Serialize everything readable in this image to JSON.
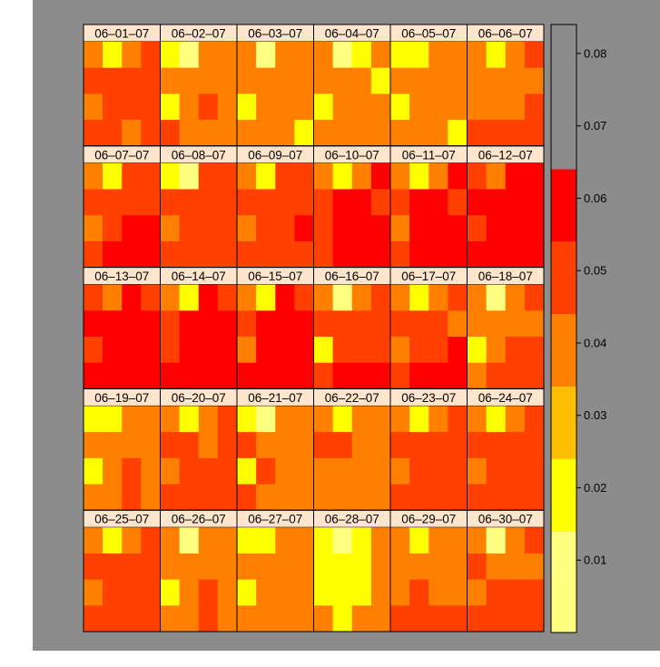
{
  "chart_data": {
    "type": "heatmap",
    "layout": {
      "rows": 5,
      "cols": 6
    },
    "grid_size": [
      4,
      4
    ],
    "colorbar": {
      "ticks": [
        "0.01",
        "0.02",
        "0.03",
        "0.04",
        "0.05",
        "0.06",
        "0.07",
        "0.08"
      ],
      "range": [
        0.0,
        0.084
      ],
      "breaks": [
        0.0,
        0.014,
        0.024,
        0.034,
        0.044,
        0.054,
        0.064,
        0.074,
        0.084
      ],
      "colors": [
        "#ffff80",
        "#ffff00",
        "#ffbf00",
        "#ff8000",
        "#ff4000",
        "#ff0000"
      ]
    },
    "panels": [
      {
        "label": "06–01–07",
        "values": [
          [
            0.038,
            0.02,
            0.038,
            0.048
          ],
          [
            0.048,
            0.048,
            0.048,
            0.048
          ],
          [
            0.038,
            0.048,
            0.048,
            0.048
          ],
          [
            0.048,
            0.048,
            0.038,
            0.048
          ]
        ]
      },
      {
        "label": "06–02–07",
        "values": [
          [
            0.02,
            0.01,
            0.038,
            0.038
          ],
          [
            0.038,
            0.038,
            0.038,
            0.038
          ],
          [
            0.02,
            0.038,
            0.048,
            0.038
          ],
          [
            0.048,
            0.038,
            0.038,
            0.038
          ]
        ]
      },
      {
        "label": "06–03–07",
        "values": [
          [
            0.038,
            0.01,
            0.038,
            0.038
          ],
          [
            0.038,
            0.038,
            0.038,
            0.038
          ],
          [
            0.02,
            0.038,
            0.038,
            0.038
          ],
          [
            0.038,
            0.038,
            0.038,
            0.02
          ]
        ]
      },
      {
        "label": "06–04–07",
        "values": [
          [
            0.038,
            0.01,
            0.02,
            0.038
          ],
          [
            0.038,
            0.038,
            0.038,
            0.02
          ],
          [
            0.02,
            0.038,
            0.038,
            0.038
          ],
          [
            0.038,
            0.038,
            0.038,
            0.038
          ]
        ]
      },
      {
        "label": "06–05–07",
        "values": [
          [
            0.02,
            0.02,
            0.038,
            0.038
          ],
          [
            0.038,
            0.038,
            0.038,
            0.038
          ],
          [
            0.02,
            0.038,
            0.038,
            0.038
          ],
          [
            0.038,
            0.038,
            0.038,
            0.02
          ]
        ]
      },
      {
        "label": "06–06–07",
        "values": [
          [
            0.038,
            0.02,
            0.038,
            0.048
          ],
          [
            0.038,
            0.038,
            0.038,
            0.038
          ],
          [
            0.038,
            0.038,
            0.038,
            0.048
          ],
          [
            0.048,
            0.048,
            0.048,
            0.048
          ]
        ]
      },
      {
        "label": "06–07–07",
        "values": [
          [
            0.038,
            0.02,
            0.048,
            0.048
          ],
          [
            0.048,
            0.048,
            0.048,
            0.048
          ],
          [
            0.038,
            0.048,
            0.058,
            0.058
          ],
          [
            0.048,
            0.058,
            0.058,
            0.058
          ]
        ]
      },
      {
        "label": "06–08–07",
        "values": [
          [
            0.02,
            0.01,
            0.048,
            0.048
          ],
          [
            0.048,
            0.048,
            0.048,
            0.048
          ],
          [
            0.038,
            0.048,
            0.048,
            0.048
          ],
          [
            0.048,
            0.048,
            0.048,
            0.048
          ]
        ]
      },
      {
        "label": "06–09–07",
        "values": [
          [
            0.038,
            0.02,
            0.048,
            0.048
          ],
          [
            0.048,
            0.048,
            0.048,
            0.048
          ],
          [
            0.038,
            0.048,
            0.048,
            0.058
          ],
          [
            0.048,
            0.048,
            0.048,
            0.048
          ]
        ]
      },
      {
        "label": "06–10–07",
        "values": [
          [
            0.038,
            0.02,
            0.038,
            0.058
          ],
          [
            0.048,
            0.058,
            0.058,
            0.048
          ],
          [
            0.048,
            0.058,
            0.058,
            0.058
          ],
          [
            0.048,
            0.058,
            0.058,
            0.058
          ]
        ]
      },
      {
        "label": "06–11–07",
        "values": [
          [
            0.038,
            0.02,
            0.038,
            0.058
          ],
          [
            0.048,
            0.058,
            0.058,
            0.048
          ],
          [
            0.038,
            0.058,
            0.058,
            0.058
          ],
          [
            0.048,
            0.058,
            0.058,
            0.058
          ]
        ]
      },
      {
        "label": "06–12–07",
        "values": [
          [
            0.048,
            0.038,
            0.058,
            0.058
          ],
          [
            0.058,
            0.075,
            0.075,
            0.058
          ],
          [
            0.048,
            0.058,
            0.075,
            0.075
          ],
          [
            0.058,
            0.058,
            0.075,
            0.075
          ]
        ]
      },
      {
        "label": "06–13–07",
        "values": [
          [
            0.048,
            0.038,
            0.075,
            0.048
          ],
          [
            0.058,
            0.075,
            0.075,
            0.058
          ],
          [
            0.048,
            0.075,
            0.075,
            0.075
          ],
          [
            0.058,
            0.075,
            0.075,
            0.075
          ]
        ]
      },
      {
        "label": "06–14–07",
        "values": [
          [
            0.038,
            0.02,
            0.075,
            0.048
          ],
          [
            0.048,
            0.075,
            0.075,
            0.058
          ],
          [
            0.048,
            0.075,
            0.075,
            0.075
          ],
          [
            0.058,
            0.075,
            0.075,
            0.075
          ]
        ]
      },
      {
        "label": "06–15–07",
        "values": [
          [
            0.038,
            0.02,
            0.058,
            0.048
          ],
          [
            0.048,
            0.058,
            0.058,
            0.058
          ],
          [
            0.038,
            0.058,
            0.058,
            0.075
          ],
          [
            0.058,
            0.075,
            0.075,
            0.075
          ]
        ]
      },
      {
        "label": "06–16–07",
        "values": [
          [
            0.038,
            0.01,
            0.038,
            0.048
          ],
          [
            0.048,
            0.048,
            0.048,
            0.048
          ],
          [
            0.02,
            0.048,
            0.048,
            0.048
          ],
          [
            0.048,
            0.058,
            0.058,
            0.058
          ]
        ]
      },
      {
        "label": "06–17–07",
        "values": [
          [
            0.038,
            0.02,
            0.038,
            0.048
          ],
          [
            0.048,
            0.048,
            0.048,
            0.038
          ],
          [
            0.038,
            0.048,
            0.048,
            0.058
          ],
          [
            0.048,
            0.058,
            0.058,
            0.058
          ]
        ]
      },
      {
        "label": "06–18–07",
        "values": [
          [
            0.038,
            0.01,
            0.038,
            0.048
          ],
          [
            0.038,
            0.038,
            0.038,
            0.038
          ],
          [
            0.02,
            0.038,
            0.048,
            0.048
          ],
          [
            0.038,
            0.048,
            0.048,
            0.048
          ]
        ]
      },
      {
        "label": "06–19–07",
        "values": [
          [
            0.02,
            0.02,
            0.038,
            0.038
          ],
          [
            0.038,
            0.038,
            0.038,
            0.038
          ],
          [
            0.02,
            0.038,
            0.048,
            0.038
          ],
          [
            0.038,
            0.038,
            0.048,
            0.038
          ]
        ]
      },
      {
        "label": "06–20–07",
        "values": [
          [
            0.038,
            0.02,
            0.038,
            0.048
          ],
          [
            0.048,
            0.048,
            0.038,
            0.048
          ],
          [
            0.038,
            0.048,
            0.048,
            0.048
          ],
          [
            0.048,
            0.048,
            0.048,
            0.048
          ]
        ]
      },
      {
        "label": "06–21–07",
        "values": [
          [
            0.02,
            0.01,
            0.038,
            0.038
          ],
          [
            0.048,
            0.038,
            0.038,
            0.038
          ],
          [
            0.02,
            0.048,
            0.038,
            0.038
          ],
          [
            0.048,
            0.038,
            0.038,
            0.038
          ]
        ]
      },
      {
        "label": "06–22–07",
        "values": [
          [
            0.038,
            0.02,
            0.038,
            0.038
          ],
          [
            0.048,
            0.048,
            0.038,
            0.038
          ],
          [
            0.038,
            0.038,
            0.038,
            0.038
          ],
          [
            0.038,
            0.038,
            0.038,
            0.038
          ]
        ]
      },
      {
        "label": "06–23–07",
        "values": [
          [
            0.038,
            0.02,
            0.038,
            0.048
          ],
          [
            0.048,
            0.048,
            0.048,
            0.048
          ],
          [
            0.038,
            0.048,
            0.048,
            0.048
          ],
          [
            0.048,
            0.048,
            0.048,
            0.048
          ]
        ]
      },
      {
        "label": "06–24–07",
        "values": [
          [
            0.038,
            0.02,
            0.038,
            0.048
          ],
          [
            0.048,
            0.048,
            0.048,
            0.048
          ],
          [
            0.038,
            0.048,
            0.048,
            0.048
          ],
          [
            0.048,
            0.048,
            0.048,
            0.048
          ]
        ]
      },
      {
        "label": "06–25–07",
        "values": [
          [
            0.038,
            0.02,
            0.038,
            0.048
          ],
          [
            0.048,
            0.048,
            0.048,
            0.048
          ],
          [
            0.038,
            0.048,
            0.048,
            0.048
          ],
          [
            0.048,
            0.048,
            0.048,
            0.048
          ]
        ]
      },
      {
        "label": "06–26–07",
        "values": [
          [
            0.038,
            0.01,
            0.038,
            0.038
          ],
          [
            0.038,
            0.038,
            0.038,
            0.038
          ],
          [
            0.02,
            0.038,
            0.048,
            0.038
          ],
          [
            0.038,
            0.038,
            0.048,
            0.038
          ]
        ]
      },
      {
        "label": "06–27–07",
        "values": [
          [
            0.02,
            0.02,
            0.038,
            0.038
          ],
          [
            0.038,
            0.038,
            0.038,
            0.038
          ],
          [
            0.02,
            0.038,
            0.038,
            0.038
          ],
          [
            0.038,
            0.038,
            0.038,
            0.038
          ]
        ]
      },
      {
        "label": "06–28–07",
        "values": [
          [
            0.02,
            0.01,
            0.02,
            0.038
          ],
          [
            0.02,
            0.02,
            0.02,
            0.038
          ],
          [
            0.02,
            0.02,
            0.02,
            0.038
          ],
          [
            0.038,
            0.02,
            0.038,
            0.038
          ]
        ]
      },
      {
        "label": "06–29–07",
        "values": [
          [
            0.038,
            0.02,
            0.038,
            0.038
          ],
          [
            0.038,
            0.038,
            0.038,
            0.038
          ],
          [
            0.038,
            0.048,
            0.038,
            0.038
          ],
          [
            0.048,
            0.048,
            0.048,
            0.048
          ]
        ]
      },
      {
        "label": "06–30–07",
        "values": [
          [
            0.038,
            0.01,
            0.038,
            0.048
          ],
          [
            0.048,
            0.038,
            0.038,
            0.038
          ],
          [
            0.038,
            0.048,
            0.048,
            0.048
          ],
          [
            0.048,
            0.048,
            0.048,
            0.048
          ]
        ]
      }
    ],
    "background": "#8c8c8c",
    "strip_color": "#ffe5cc"
  }
}
